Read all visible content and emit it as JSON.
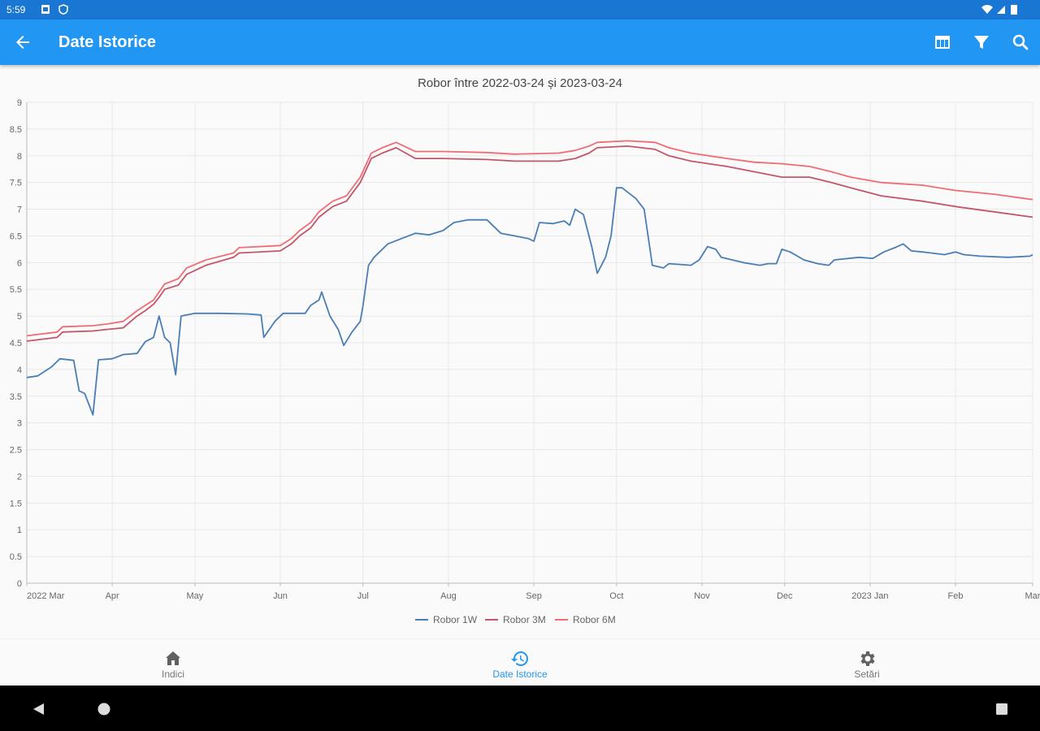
{
  "status_bar": {
    "time": "5:59"
  },
  "app_bar": {
    "title": "Date Istorice"
  },
  "chart_data": {
    "type": "line",
    "title": "Robor între 2022-03-24 și 2023-03-24",
    "xlabel": "",
    "ylabel": "",
    "ylim": [
      0,
      9
    ],
    "yticks": [
      "0",
      "0.5",
      "1",
      "1.5",
      "2",
      "2.5",
      "3",
      "3.5",
      "4",
      "4.5",
      "5",
      "5.5",
      "6",
      "6.5",
      "7",
      "7.5",
      "8",
      "8.5",
      "9"
    ],
    "xticks": [
      {
        "label": "2022 Mar",
        "date": "2022-03-01"
      },
      {
        "label": "Apr",
        "date": "2022-04-01"
      },
      {
        "label": "May",
        "date": "2022-05-01"
      },
      {
        "label": "Jun",
        "date": "2022-06-01"
      },
      {
        "label": "Jul",
        "date": "2022-07-01"
      },
      {
        "label": "Aug",
        "date": "2022-08-01"
      },
      {
        "label": "Sep",
        "date": "2022-09-01"
      },
      {
        "label": "Oct",
        "date": "2022-10-01"
      },
      {
        "label": "Nov",
        "date": "2022-11-01"
      },
      {
        "label": "Dec",
        "date": "2022-12-01"
      },
      {
        "label": "2023 Jan",
        "date": "2023-01-01"
      },
      {
        "label": "Feb",
        "date": "2023-02-01"
      },
      {
        "label": "Mar",
        "date": "2023-03-01"
      }
    ],
    "grid": true,
    "legend_position": "bottom",
    "series": [
      {
        "name": "Robor 1W",
        "color": "#4a7eb4",
        "points": [
          [
            "2022-03-01",
            3.85
          ],
          [
            "2022-03-05",
            3.88
          ],
          [
            "2022-03-10",
            4.05
          ],
          [
            "2022-03-13",
            4.2
          ],
          [
            "2022-03-18",
            4.17
          ],
          [
            "2022-03-20",
            3.6
          ],
          [
            "2022-03-22",
            3.55
          ],
          [
            "2022-03-25",
            3.15
          ],
          [
            "2022-03-27",
            4.18
          ],
          [
            "2022-04-01",
            4.2
          ],
          [
            "2022-04-05",
            4.28
          ],
          [
            "2022-04-10",
            4.3
          ],
          [
            "2022-04-13",
            4.52
          ],
          [
            "2022-04-16",
            4.6
          ],
          [
            "2022-04-18",
            5.0
          ],
          [
            "2022-04-20",
            4.6
          ],
          [
            "2022-04-22",
            4.5
          ],
          [
            "2022-04-24",
            3.9
          ],
          [
            "2022-04-26",
            5.0
          ],
          [
            "2022-05-01",
            5.05
          ],
          [
            "2022-05-10",
            5.05
          ],
          [
            "2022-05-20",
            5.04
          ],
          [
            "2022-05-25",
            5.02
          ],
          [
            "2022-05-26",
            4.6
          ],
          [
            "2022-05-30",
            4.9
          ],
          [
            "2022-06-02",
            5.05
          ],
          [
            "2022-06-10",
            5.05
          ],
          [
            "2022-06-12",
            5.2
          ],
          [
            "2022-06-15",
            5.3
          ],
          [
            "2022-06-16",
            5.45
          ],
          [
            "2022-06-19",
            5.0
          ],
          [
            "2022-06-22",
            4.75
          ],
          [
            "2022-06-24",
            4.45
          ],
          [
            "2022-06-27",
            4.7
          ],
          [
            "2022-06-30",
            4.9
          ],
          [
            "2022-07-01",
            5.2
          ],
          [
            "2022-07-03",
            5.95
          ],
          [
            "2022-07-05",
            6.1
          ],
          [
            "2022-07-10",
            6.35
          ],
          [
            "2022-07-15",
            6.45
          ],
          [
            "2022-07-20",
            6.55
          ],
          [
            "2022-07-25",
            6.52
          ],
          [
            "2022-07-30",
            6.6
          ],
          [
            "2022-08-03",
            6.75
          ],
          [
            "2022-08-08",
            6.8
          ],
          [
            "2022-08-15",
            6.8
          ],
          [
            "2022-08-20",
            6.55
          ],
          [
            "2022-08-25",
            6.5
          ],
          [
            "2022-08-30",
            6.45
          ],
          [
            "2022-09-01",
            6.4
          ],
          [
            "2022-09-03",
            6.75
          ],
          [
            "2022-09-08",
            6.73
          ],
          [
            "2022-09-12",
            6.78
          ],
          [
            "2022-09-14",
            6.7
          ],
          [
            "2022-09-16",
            7.0
          ],
          [
            "2022-09-19",
            6.9
          ],
          [
            "2022-09-22",
            6.3
          ],
          [
            "2022-09-24",
            5.8
          ],
          [
            "2022-09-27",
            6.1
          ],
          [
            "2022-09-29",
            6.5
          ],
          [
            "2022-10-01",
            7.4
          ],
          [
            "2022-10-03",
            7.4
          ],
          [
            "2022-10-08",
            7.2
          ],
          [
            "2022-10-11",
            7.0
          ],
          [
            "2022-10-14",
            5.95
          ],
          [
            "2022-10-18",
            5.9
          ],
          [
            "2022-10-20",
            5.98
          ],
          [
            "2022-10-28",
            5.95
          ],
          [
            "2022-10-31",
            6.05
          ],
          [
            "2022-11-03",
            6.3
          ],
          [
            "2022-11-06",
            6.25
          ],
          [
            "2022-11-08",
            6.1
          ],
          [
            "2022-11-12",
            6.05
          ],
          [
            "2022-11-16",
            6.0
          ],
          [
            "2022-11-22",
            5.95
          ],
          [
            "2022-11-25",
            5.98
          ],
          [
            "2022-11-28",
            5.98
          ],
          [
            "2022-11-30",
            6.25
          ],
          [
            "2022-12-03",
            6.2
          ],
          [
            "2022-12-08",
            6.05
          ],
          [
            "2022-12-13",
            5.98
          ],
          [
            "2022-12-17",
            5.95
          ],
          [
            "2022-12-19",
            6.05
          ],
          [
            "2022-12-28",
            6.1
          ],
          [
            "2023-01-02",
            6.08
          ],
          [
            "2023-01-06",
            6.2
          ],
          [
            "2023-01-10",
            6.28
          ],
          [
            "2023-01-13",
            6.35
          ],
          [
            "2023-01-16",
            6.22
          ],
          [
            "2023-01-20",
            6.2
          ],
          [
            "2023-01-28",
            6.15
          ],
          [
            "2023-02-01",
            6.2
          ],
          [
            "2023-02-04",
            6.15
          ],
          [
            "2023-02-10",
            6.12
          ],
          [
            "2023-02-20",
            6.1
          ],
          [
            "2023-02-28",
            6.12
          ],
          [
            "2023-03-01",
            6.15
          ]
        ]
      },
      {
        "name": "Robor 3M",
        "color": "#c2566b",
        "points": [
          [
            "2022-03-01",
            4.53
          ],
          [
            "2022-03-12",
            4.6
          ],
          [
            "2022-03-14",
            4.7
          ],
          [
            "2022-03-25",
            4.72
          ],
          [
            "2022-03-30",
            4.75
          ],
          [
            "2022-04-05",
            4.78
          ],
          [
            "2022-04-10",
            5.0
          ],
          [
            "2022-04-13",
            5.1
          ],
          [
            "2022-04-16",
            5.22
          ],
          [
            "2022-04-18",
            5.35
          ],
          [
            "2022-04-20",
            5.5
          ],
          [
            "2022-04-25",
            5.58
          ],
          [
            "2022-04-28",
            5.78
          ],
          [
            "2022-05-05",
            5.95
          ],
          [
            "2022-05-15",
            6.1
          ],
          [
            "2022-05-17",
            6.18
          ],
          [
            "2022-06-01",
            6.22
          ],
          [
            "2022-06-05",
            6.35
          ],
          [
            "2022-06-08",
            6.5
          ],
          [
            "2022-06-12",
            6.65
          ],
          [
            "2022-06-15",
            6.85
          ],
          [
            "2022-06-20",
            7.05
          ],
          [
            "2022-06-25",
            7.15
          ],
          [
            "2022-06-30",
            7.5
          ],
          [
            "2022-07-04",
            7.95
          ],
          [
            "2022-07-08",
            8.05
          ],
          [
            "2022-07-13",
            8.15
          ],
          [
            "2022-07-20",
            7.95
          ],
          [
            "2022-07-30",
            7.95
          ],
          [
            "2022-08-15",
            7.93
          ],
          [
            "2022-08-25",
            7.9
          ],
          [
            "2022-09-10",
            7.9
          ],
          [
            "2022-09-16",
            7.95
          ],
          [
            "2022-09-21",
            8.05
          ],
          [
            "2022-09-24",
            8.15
          ],
          [
            "2022-10-05",
            8.18
          ],
          [
            "2022-10-15",
            8.12
          ],
          [
            "2022-10-20",
            8.0
          ],
          [
            "2022-10-28",
            7.9
          ],
          [
            "2022-11-10",
            7.8
          ],
          [
            "2022-11-20",
            7.7
          ],
          [
            "2022-11-30",
            7.6
          ],
          [
            "2022-12-10",
            7.6
          ],
          [
            "2022-12-18",
            7.5
          ],
          [
            "2022-12-25",
            7.4
          ],
          [
            "2023-01-05",
            7.25
          ],
          [
            "2023-01-20",
            7.15
          ],
          [
            "2023-02-01",
            7.05
          ],
          [
            "2023-02-15",
            6.95
          ],
          [
            "2023-03-01",
            6.85
          ]
        ]
      },
      {
        "name": "Robor 6M",
        "color": "#ef6c74",
        "points": [
          [
            "2022-03-01",
            4.63
          ],
          [
            "2022-03-12",
            4.7
          ],
          [
            "2022-03-14",
            4.8
          ],
          [
            "2022-03-25",
            4.82
          ],
          [
            "2022-03-30",
            4.85
          ],
          [
            "2022-04-05",
            4.9
          ],
          [
            "2022-04-10",
            5.1
          ],
          [
            "2022-04-13",
            5.2
          ],
          [
            "2022-04-16",
            5.3
          ],
          [
            "2022-04-18",
            5.45
          ],
          [
            "2022-04-20",
            5.6
          ],
          [
            "2022-04-25",
            5.7
          ],
          [
            "2022-04-28",
            5.9
          ],
          [
            "2022-05-05",
            6.05
          ],
          [
            "2022-05-15",
            6.18
          ],
          [
            "2022-05-17",
            6.28
          ],
          [
            "2022-06-01",
            6.32
          ],
          [
            "2022-06-05",
            6.45
          ],
          [
            "2022-06-08",
            6.6
          ],
          [
            "2022-06-12",
            6.75
          ],
          [
            "2022-06-15",
            6.95
          ],
          [
            "2022-06-20",
            7.15
          ],
          [
            "2022-06-25",
            7.25
          ],
          [
            "2022-06-30",
            7.6
          ],
          [
            "2022-07-04",
            8.05
          ],
          [
            "2022-07-08",
            8.15
          ],
          [
            "2022-07-13",
            8.25
          ],
          [
            "2022-07-20",
            8.08
          ],
          [
            "2022-07-30",
            8.08
          ],
          [
            "2022-08-15",
            8.06
          ],
          [
            "2022-08-25",
            8.03
          ],
          [
            "2022-09-10",
            8.05
          ],
          [
            "2022-09-16",
            8.1
          ],
          [
            "2022-09-21",
            8.18
          ],
          [
            "2022-09-24",
            8.25
          ],
          [
            "2022-10-05",
            8.28
          ],
          [
            "2022-10-15",
            8.25
          ],
          [
            "2022-10-20",
            8.15
          ],
          [
            "2022-10-28",
            8.05
          ],
          [
            "2022-11-10",
            7.95
          ],
          [
            "2022-11-20",
            7.88
          ],
          [
            "2022-11-30",
            7.85
          ],
          [
            "2022-12-10",
            7.8
          ],
          [
            "2022-12-18",
            7.7
          ],
          [
            "2022-12-25",
            7.6
          ],
          [
            "2023-01-05",
            7.5
          ],
          [
            "2023-01-20",
            7.45
          ],
          [
            "2023-02-01",
            7.35
          ],
          [
            "2023-02-15",
            7.28
          ],
          [
            "2023-03-01",
            7.18
          ]
        ]
      }
    ]
  },
  "bottom_nav": {
    "items": [
      {
        "label": "Indici",
        "icon": "home-icon"
      },
      {
        "label": "Date Istorice",
        "icon": "history-icon"
      },
      {
        "label": "Setări",
        "icon": "settings-icon"
      }
    ]
  },
  "colors": {
    "status_bar": "#1976d2",
    "app_bar": "#2196f3",
    "active_nav": "#2196f3"
  }
}
